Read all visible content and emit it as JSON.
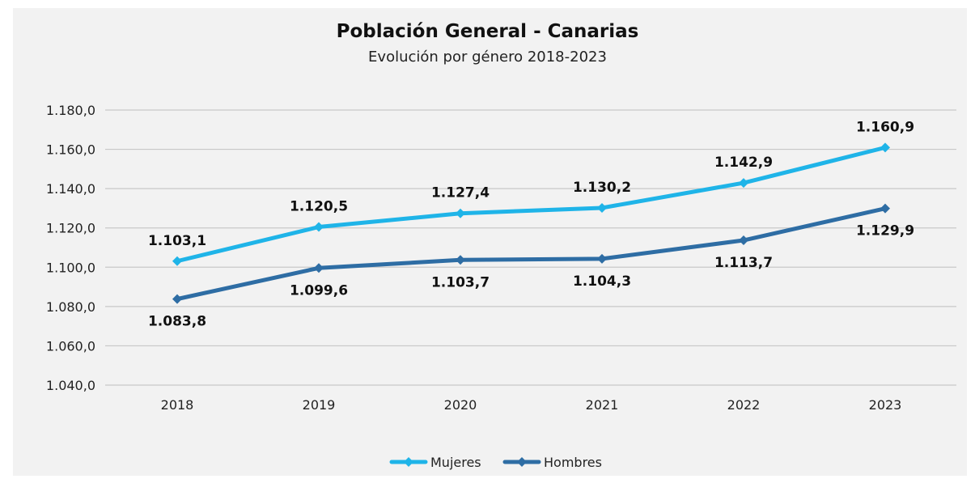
{
  "chart_data": {
    "type": "line",
    "title": "Población General - Canarias",
    "subtitle": "Evolución por género 2018-2023",
    "xlabel": "",
    "ylabel": "",
    "x": [
      "2018",
      "2019",
      "2020",
      "2021",
      "2022",
      "2023"
    ],
    "ylim": [
      1040.0,
      1180.0
    ],
    "yticks": [
      1040.0,
      1060.0,
      1080.0,
      1100.0,
      1120.0,
      1140.0,
      1160.0,
      1180.0
    ],
    "ytick_labels": [
      "1.040,0",
      "1.060,0",
      "1.080,0",
      "1.100,0",
      "1.120,0",
      "1.140,0",
      "1.160,0",
      "1.180,0"
    ],
    "grid": "horizontal",
    "legend_position": "bottom",
    "series": [
      {
        "name": "Mujeres",
        "color": "#1fb4e8",
        "marker": "diamond",
        "label_position": "above",
        "values": [
          1103.1,
          1120.5,
          1127.4,
          1130.2,
          1142.9,
          1160.9
        ],
        "labels": [
          "1.103,1",
          "1.120,5",
          "1.127,4",
          "1.130,2",
          "1.142,9",
          "1.160,9"
        ]
      },
      {
        "name": "Hombres",
        "color": "#2e6da4",
        "marker": "diamond",
        "label_position": "below",
        "values": [
          1083.8,
          1099.6,
          1103.7,
          1104.3,
          1113.7,
          1129.9
        ],
        "labels": [
          "1.083,8",
          "1.099,6",
          "1.103,7",
          "1.104,3",
          "1.113,7",
          "1.129,9"
        ]
      }
    ]
  }
}
